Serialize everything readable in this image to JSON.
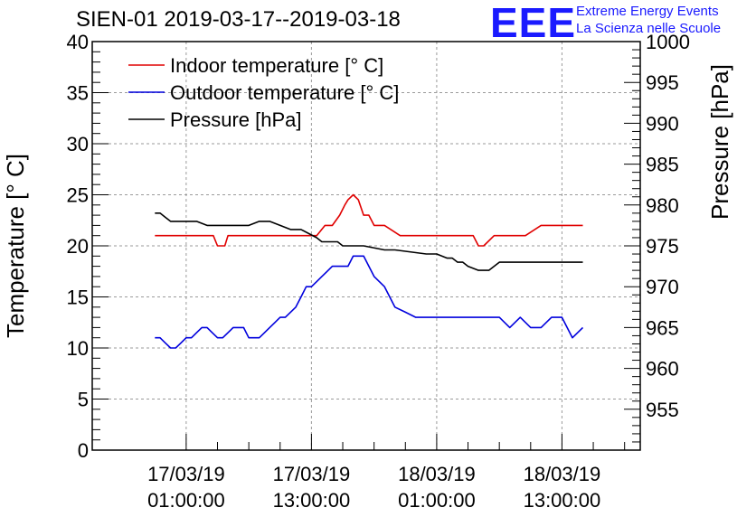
{
  "header": {
    "title": "SIEN-01 2019-03-17--2019-03-18",
    "logo_text": "EEE",
    "logo_line1": "Extreme Energy Events",
    "logo_line2": "La Scienza nelle Scuole"
  },
  "colors": {
    "indoor": "#e00000",
    "outdoor": "#0000dd",
    "pressure": "#000000",
    "logo": "#1a1aff",
    "grid": "#9a9a9a"
  },
  "chart_data": {
    "type": "line",
    "title": "SIEN-01 2019-03-17--2019-03-18",
    "xlabel": "",
    "ylabel": "Temperature [° C]",
    "ylabel_right": "Pressure [hPa]",
    "ylim": [
      0,
      40
    ],
    "ylim_right": [
      950,
      1000
    ],
    "xlim_hours": [
      -8,
      44.5
    ],
    "grid": true,
    "legend_position": "top-left",
    "x_unit": "hours since 17/03/19 00:00:00",
    "y_ticks": [
      0,
      5,
      10,
      15,
      20,
      25,
      30,
      35,
      40
    ],
    "y_ticks_right": [
      955,
      960,
      965,
      970,
      975,
      980,
      985,
      990,
      995,
      1000
    ],
    "x_ticks": [
      {
        "value": 1,
        "line1": "17/03/19",
        "line2": "01:00:00"
      },
      {
        "value": 13,
        "line1": "17/03/19",
        "line2": "13:00:00"
      },
      {
        "value": 25,
        "line1": "18/03/19",
        "line2": "01:00:00"
      },
      {
        "value": 37,
        "line1": "18/03/19",
        "line2": "13:00:00"
      }
    ],
    "series": [
      {
        "name": "Indoor temperature [° C]",
        "axis": "left",
        "x": [
          -2,
          3.6,
          4,
          4.7,
          5,
          7,
          13.5,
          14.3,
          15,
          15.7,
          16.2,
          16.5,
          17,
          17.5,
          18,
          18.5,
          19,
          20,
          21.5,
          22,
          26,
          28.5,
          29,
          29.5,
          30.5,
          31.5,
          33.5,
          35,
          36,
          37,
          39
        ],
        "values": [
          21,
          21,
          20,
          20,
          21,
          21,
          21,
          22,
          22,
          23,
          24,
          24.5,
          25,
          24.5,
          23,
          23,
          22,
          22,
          21,
          21,
          21,
          21,
          20,
          20,
          21,
          21,
          21,
          22,
          22,
          22,
          22
        ]
      },
      {
        "name": "Outdoor temperature [° C]",
        "axis": "left",
        "x": [
          -2,
          -1.5,
          -1,
          -0.5,
          0,
          0.5,
          1,
          1.5,
          2,
          2.5,
          3,
          3.5,
          4,
          4.5,
          5,
          5.5,
          6,
          6.5,
          7,
          7.5,
          8,
          8.5,
          9,
          9.5,
          10,
          10.5,
          11,
          11.5,
          12,
          12.5,
          13,
          13.5,
          14,
          14.5,
          15,
          15.5,
          16,
          16.5,
          17,
          17.5,
          18,
          19,
          20,
          21,
          22,
          23,
          24,
          24.5,
          25,
          25.5,
          26,
          27,
          28,
          29,
          30,
          31,
          32,
          33,
          34,
          35,
          36,
          37,
          38,
          39
        ],
        "values": [
          11,
          11,
          10.5,
          10,
          10,
          10.5,
          11,
          11,
          11.5,
          12,
          12,
          11.5,
          11,
          11,
          11.5,
          12,
          12,
          12,
          11,
          11,
          11,
          11.5,
          12,
          12.5,
          13,
          13,
          13.5,
          14,
          15,
          16,
          16,
          16.5,
          17,
          17.5,
          18,
          18,
          18,
          18,
          19,
          19,
          19,
          17,
          16,
          14,
          13.5,
          13,
          13,
          13,
          13,
          13,
          13,
          13,
          13,
          13,
          13,
          13,
          12,
          13,
          12,
          12,
          13,
          13,
          11,
          12
        ]
      },
      {
        "name": "Pressure [hPa]",
        "axis": "right",
        "x": [
          -2,
          -1.5,
          -1,
          -0.5,
          0,
          2,
          3,
          4,
          5,
          7,
          8,
          9,
          10,
          11,
          12,
          13.5,
          14,
          15,
          15.5,
          16,
          17,
          18,
          20,
          21,
          24,
          25,
          26,
          26.5,
          27,
          27.5,
          28,
          29,
          30,
          31,
          33,
          34,
          35,
          37.5,
          38,
          39
        ],
        "values": [
          979,
          979,
          978.5,
          978,
          978,
          978,
          977.5,
          977.5,
          977.5,
          977.5,
          978,
          978,
          977.5,
          977,
          977,
          976,
          975.5,
          975.5,
          975.5,
          975,
          975,
          975,
          974.5,
          974.5,
          974,
          974,
          973.5,
          973.5,
          973,
          973,
          972.5,
          972,
          972,
          973,
          973,
          973,
          973,
          973,
          973,
          973
        ]
      }
    ]
  }
}
